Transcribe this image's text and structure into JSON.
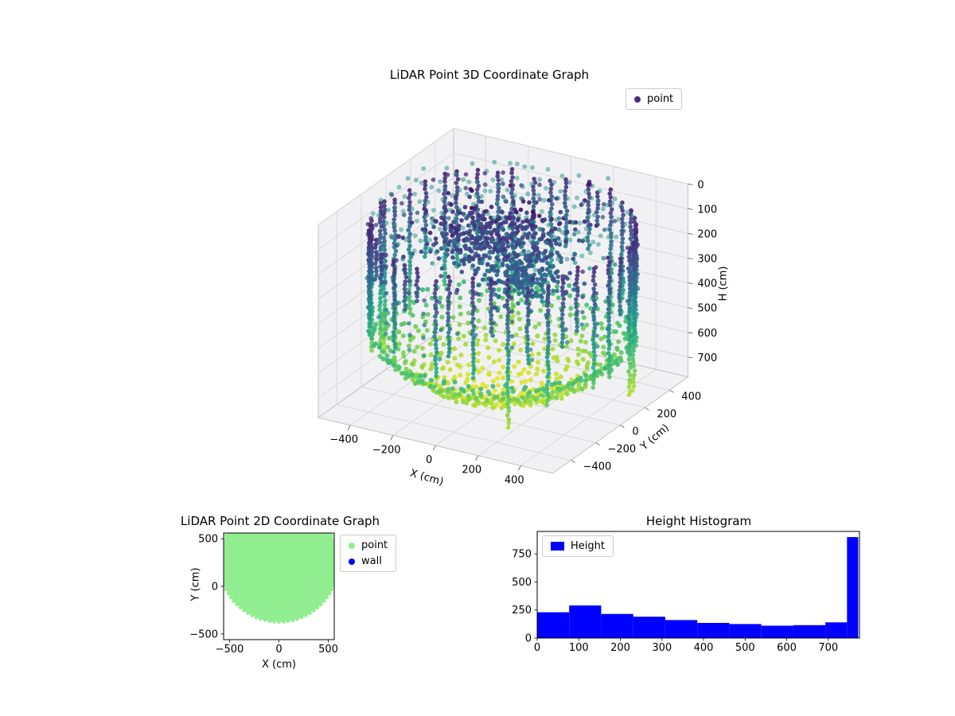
{
  "figure": {
    "background": "#ffffff"
  },
  "chart_data": [
    {
      "id": "lidar-3d",
      "type": "scatter3d",
      "title": "LiDAR Point 3D Coordinate Graph",
      "xlabel": "X (cm)",
      "ylabel": "Y (cm)",
      "zlabel": "H (cm)",
      "xlim": [
        -550,
        550
      ],
      "ylim": [
        -550,
        550
      ],
      "hlim": [
        0,
        780
      ],
      "h_axis_inverted": true,
      "xticks": [
        -400,
        -200,
        0,
        200,
        400
      ],
      "yticks": [
        -400,
        -200,
        0,
        200,
        400
      ],
      "hticks": [
        0,
        100,
        200,
        300,
        400,
        500,
        600,
        700
      ],
      "view": {
        "elev_deg": 30,
        "azim_deg": -60
      },
      "legend": [
        {
          "label": "point",
          "color": "#472f7d"
        }
      ],
      "style": {
        "pane_color": "#f1f1f3",
        "grid_color": "#d9d9d9",
        "edge_color": "#c3c3c3",
        "tick_color": "#555555",
        "colormap": "viridis",
        "color_encodes": "height",
        "marker_radius_px": 3
      },
      "point_cloud_model": {
        "seed": 42,
        "ceiling_grid": {
          "extent": 490,
          "spacing": 70,
          "max_radius": 545,
          "height": 45,
          "height_jitter": 50,
          "alpha": 0.5,
          "viridis_t": 0.45
        },
        "floor_dome": {
          "radius": 750,
          "polar_max_deg": 47,
          "ring_step_deg": 3,
          "arc_spacing": 42,
          "alpha": 0.9
        },
        "wall_columns": {
          "count": 44,
          "radius": 545,
          "top_h": 70,
          "bottom_h_min": 220,
          "bottom_h_max": 720,
          "step_h": 16,
          "alpha": 0.9
        },
        "wall_sparse_grid": {
          "azimuth_step_deg": 8,
          "radius": 548,
          "h_min": 90,
          "h_max": 460,
          "h_step": 55,
          "keep": 0.45,
          "alpha": 0.75
        },
        "clusters": [
          {
            "center": [
              -70,
              60,
              170
            ],
            "sigma": [
              140,
              140,
              50
            ],
            "count": 480
          },
          {
            "center": [
              120,
              -30,
              270
            ],
            "sigma": [
              90,
              80,
              45
            ],
            "count": 200
          }
        ],
        "outlier": {
          "x": -40,
          "y": 120,
          "h": 105
        }
      }
    },
    {
      "id": "lidar-2d",
      "type": "scatter2d",
      "title": "LiDAR Point 2D Coordinate Graph",
      "xlabel": "X (cm)",
      "ylabel": "Y (cm)",
      "xlim": [
        -560,
        560
      ],
      "ylim": [
        -560,
        560
      ],
      "xticks": [
        -500,
        0,
        500
      ],
      "yticks": [
        -500,
        0,
        500
      ],
      "legend": [
        {
          "label": "point",
          "color": "#90ee90"
        },
        {
          "label": "wall",
          "color": "#0000ff"
        }
      ],
      "point_region": {
        "shape": "disk",
        "center": [
          0,
          250
        ],
        "radius": 600,
        "color": "#90ee90"
      }
    },
    {
      "id": "height-hist",
      "type": "histogram",
      "title": "Height Histogram",
      "legend": [
        {
          "label": "Height",
          "color": "#0000ff"
        }
      ],
      "bar_color": "#0000ff",
      "xlim": [
        0,
        775
      ],
      "ylim": [
        0,
        950
      ],
      "xticks": [
        0,
        100,
        200,
        300,
        400,
        500,
        600,
        700
      ],
      "yticks": [
        0,
        250,
        500,
        750
      ],
      "bins": [
        {
          "x0": 0,
          "x1": 77,
          "count": 230
        },
        {
          "x0": 77,
          "x1": 154,
          "count": 290
        },
        {
          "x0": 154,
          "x1": 231,
          "count": 215
        },
        {
          "x0": 231,
          "x1": 308,
          "count": 190
        },
        {
          "x0": 308,
          "x1": 385,
          "count": 160
        },
        {
          "x0": 385,
          "x1": 462,
          "count": 135
        },
        {
          "x0": 462,
          "x1": 539,
          "count": 125
        },
        {
          "x0": 539,
          "x1": 616,
          "count": 110
        },
        {
          "x0": 616,
          "x1": 693,
          "count": 115
        },
        {
          "x0": 693,
          "x1": 745,
          "count": 140
        },
        {
          "x0": 745,
          "x1": 772,
          "count": 900
        }
      ]
    }
  ]
}
